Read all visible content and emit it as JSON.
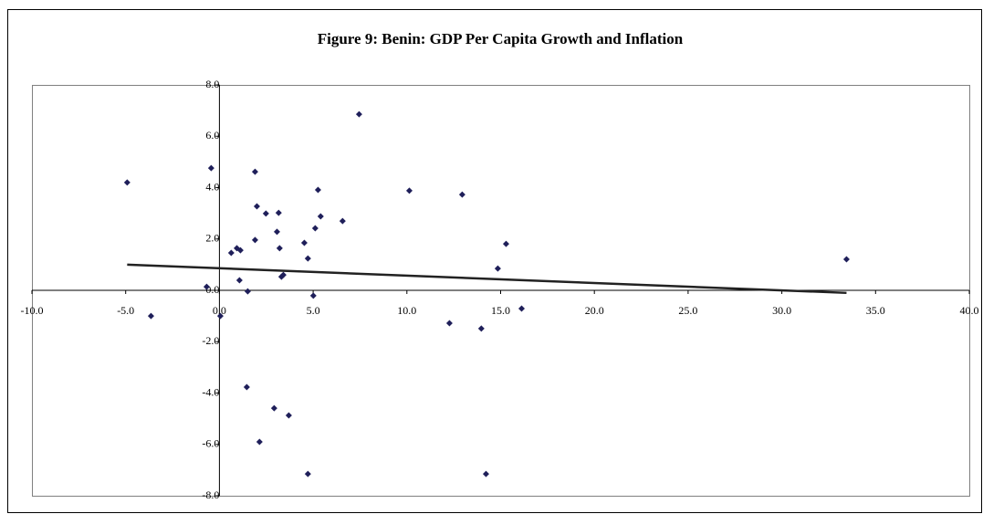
{
  "chart_data": {
    "type": "scatter",
    "title": "Figure 9: Benin: GDP Per Capita Growth and Inflation",
    "x": [
      -4.92,
      -3.65,
      -0.44,
      -0.68,
      0.05,
      0.63,
      0.93,
      1.12,
      1.07,
      1.51,
      1.46,
      1.9,
      2.0,
      1.9,
      2.48,
      2.92,
      3.07,
      3.16,
      3.21,
      3.31,
      3.41,
      2.14,
      3.7,
      4.53,
      4.72,
      4.72,
      5.01,
      5.11,
      5.26,
      5.4,
      6.57,
      7.45,
      10.13,
      12.27,
      12.95,
      13.97,
      14.22,
      14.85,
      15.29,
      16.12,
      33.45
    ],
    "values": [
      4.2,
      -1.0,
      4.76,
      0.14,
      -1.0,
      1.46,
      1.64,
      1.56,
      0.39,
      -0.04,
      -3.77,
      4.62,
      3.27,
      1.96,
      2.99,
      -4.59,
      2.28,
      3.02,
      1.64,
      0.53,
      0.6,
      -5.9,
      -4.87,
      1.85,
      1.24,
      -7.15,
      -0.21,
      2.42,
      3.91,
      2.88,
      2.7,
      6.86,
      3.88,
      -1.28,
      3.73,
      -1.49,
      -7.15,
      0.85,
      1.81,
      -0.71,
      1.21
    ],
    "color": "#1f1f5a",
    "trendline": {
      "x": [
        -4.92,
        33.45
      ],
      "values": [
        1.0,
        -0.1
      ],
      "color": "#222222"
    },
    "xlim": [
      -10,
      40
    ],
    "ylim": [
      -8,
      8
    ],
    "xticks": [
      {
        "value": -10,
        "label": "-10.0"
      },
      {
        "value": -5,
        "label": "-5.0"
      },
      {
        "value": 0,
        "label": "0.0"
      },
      {
        "value": 5,
        "label": "5.0"
      },
      {
        "value": 10,
        "label": "10.0"
      },
      {
        "value": 15,
        "label": "15.0"
      },
      {
        "value": 20,
        "label": "20.0"
      },
      {
        "value": 25,
        "label": "25.0"
      },
      {
        "value": 30,
        "label": "30.0"
      },
      {
        "value": 35,
        "label": "35.0"
      },
      {
        "value": 40,
        "label": "40.0"
      }
    ],
    "yticks": [
      {
        "value": -8,
        "label": "-8.0"
      },
      {
        "value": -6,
        "label": "-6.0"
      },
      {
        "value": -4,
        "label": "-4.0"
      },
      {
        "value": -2,
        "label": "-2.0"
      },
      {
        "value": 0,
        "label": "0.0"
      },
      {
        "value": 2,
        "label": "2.0"
      },
      {
        "value": 4,
        "label": "4.0"
      },
      {
        "value": 6,
        "label": "6.0"
      },
      {
        "value": 8,
        "label": "8.0"
      }
    ],
    "grid": false
  }
}
